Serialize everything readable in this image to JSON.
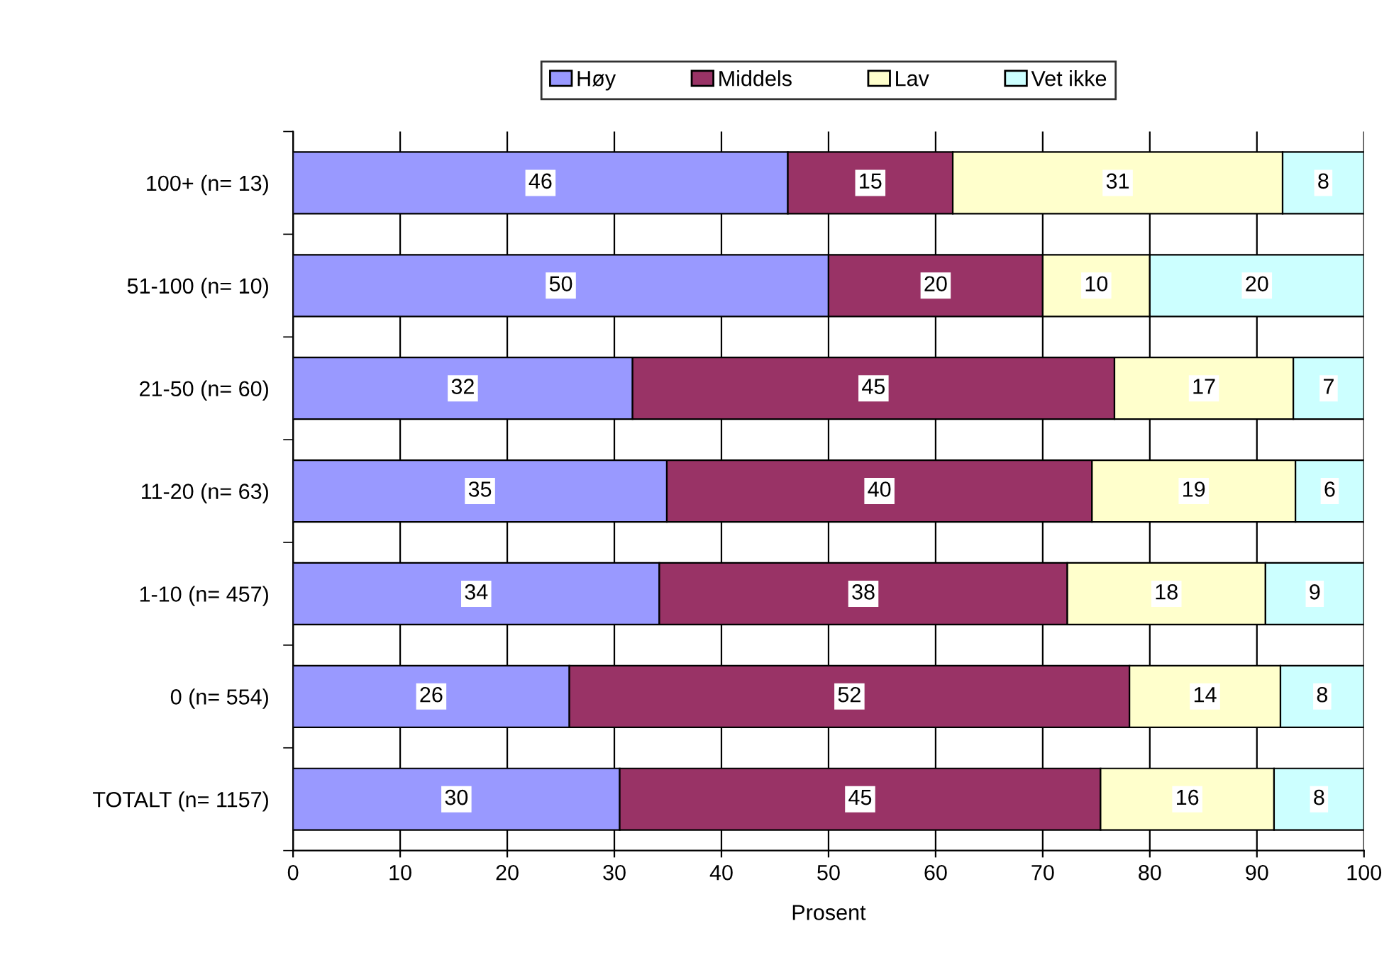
{
  "chart_data": {
    "type": "bar",
    "orientation": "horizontal",
    "stacked": true,
    "xlabel": "Prosent",
    "categories": [
      "100+ (n= 13)",
      "51-100 (n= 10)",
      "21-50 (n= 60)",
      "11-20 (n= 63)",
      "1-10 (n= 457)",
      "0 (n= 554)",
      "TOTALT (n= 1157)"
    ],
    "series": [
      {
        "name": "Høy",
        "color": "#9999ff",
        "values": [
          46.2,
          50,
          31.7,
          34.9,
          34.2,
          25.8,
          30.5
        ],
        "value_labels": [
          "46",
          "50",
          "32",
          "35",
          "34",
          "26",
          "30"
        ]
      },
      {
        "name": "Middels",
        "color": "#993366",
        "values": [
          15.4,
          20,
          45,
          39.7,
          38.1,
          52.3,
          44.9
        ],
        "value_labels": [
          "15",
          "20",
          "45",
          "40",
          "38",
          "52",
          "45"
        ]
      },
      {
        "name": "Lav",
        "color": "#ffffcc",
        "values": [
          30.8,
          10,
          16.7,
          19.0,
          18.5,
          14.1,
          16.2
        ],
        "value_labels": [
          "31",
          "10",
          "17",
          "19",
          "18",
          "14",
          "16"
        ]
      },
      {
        "name": "Vet ikke",
        "color": "#ccffff",
        "values": [
          7.6,
          20,
          6.6,
          6.4,
          9.2,
          7.8,
          8.4
        ],
        "value_labels": [
          "8",
          "20",
          "7",
          "6",
          "9",
          "8",
          "8"
        ]
      }
    ],
    "xlim": [
      0,
      100
    ],
    "xticks": [
      0,
      10,
      20,
      30,
      40,
      50,
      60,
      70,
      80,
      90,
      100
    ],
    "grid": "x",
    "legend": "top"
  }
}
